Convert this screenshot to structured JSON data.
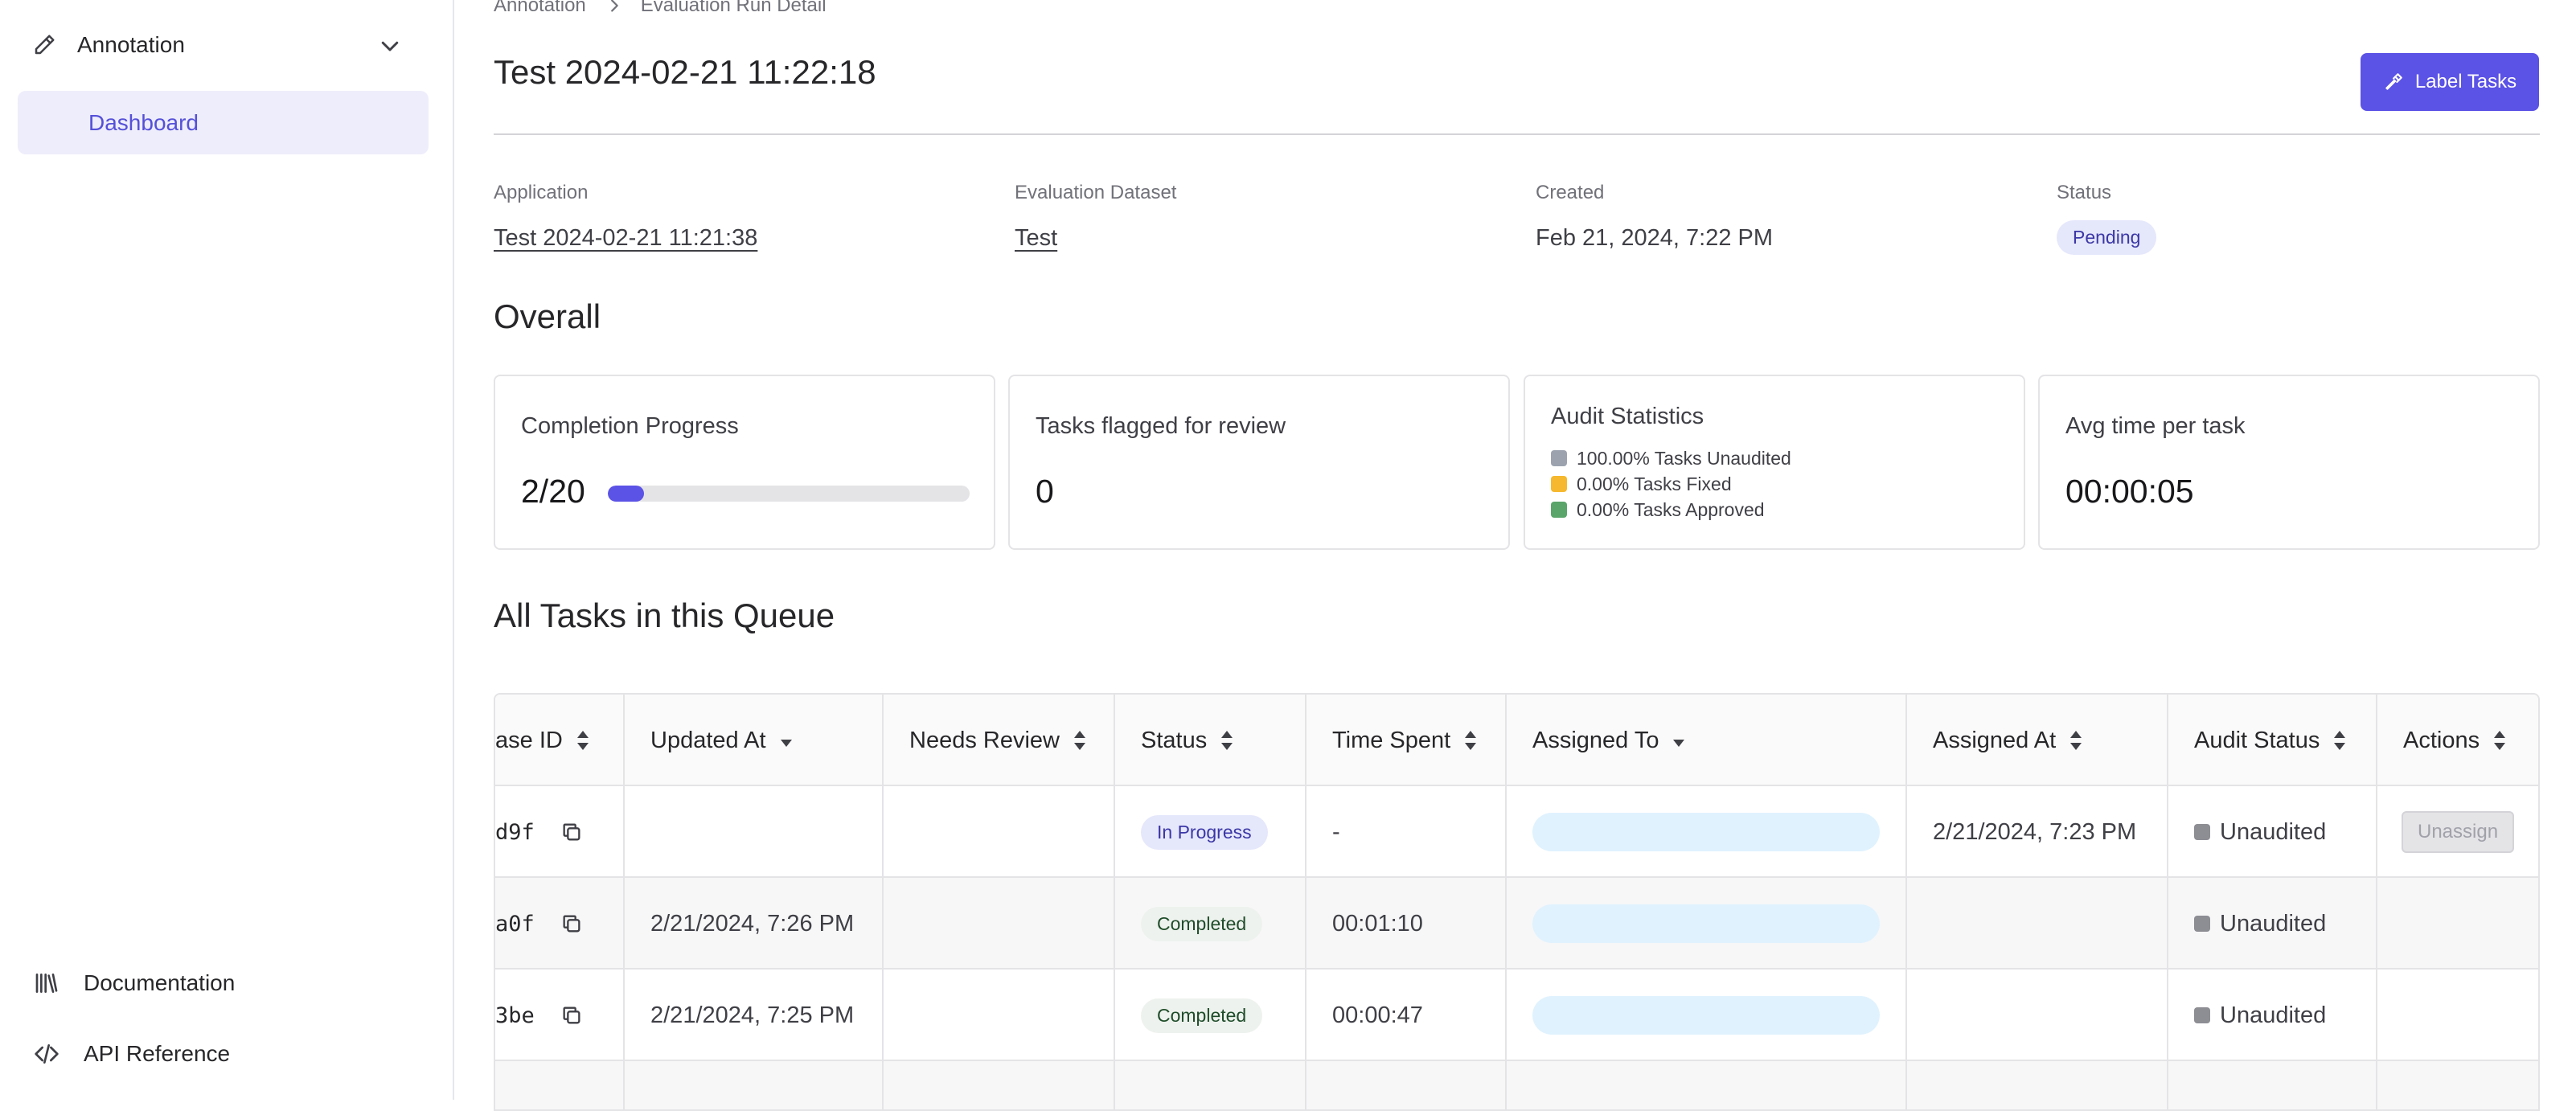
{
  "sidebar": {
    "group_label": "Annotation",
    "active_item": "Dashboard",
    "bottom_items": [
      {
        "label": "Documentation",
        "icon": "book-icon"
      },
      {
        "label": "API Reference",
        "icon": "code-icon"
      }
    ]
  },
  "breadcrumb": {
    "parent": "Annotation",
    "current": "Evaluation Run Detail"
  },
  "page": {
    "title": "Test 2024-02-21 11:22:18",
    "label_button": "Label Tasks"
  },
  "meta": {
    "application": {
      "label": "Application",
      "value": "Test 2024-02-21 11:21:38"
    },
    "dataset": {
      "label": "Evaluation Dataset",
      "value": "Test"
    },
    "created": {
      "label": "Created",
      "value": "Feb 21, 2024, 7:22 PM"
    },
    "status": {
      "label": "Status",
      "value": "Pending"
    }
  },
  "overall": {
    "title": "Overall",
    "completion": {
      "label": "Completion Progress",
      "value": "2/20",
      "fraction": 0.1
    },
    "flagged": {
      "label": "Tasks flagged for review",
      "value": "0"
    },
    "audit": {
      "label": "Audit Statistics",
      "items": [
        {
          "text": "100.00% Tasks Unaudited",
          "color": "#9ca3af"
        },
        {
          "text": "0.00% Tasks Fixed",
          "color": "#f5b82e"
        },
        {
          "text": "0.00% Tasks Approved",
          "color": "#5aa56a"
        }
      ]
    },
    "avg_time": {
      "label": "Avg time per task",
      "value": "00:00:05"
    }
  },
  "tasks": {
    "title": "All Tasks in this Queue",
    "columns": [
      "ase ID",
      "Updated At",
      "Needs Review",
      "Status",
      "Time Spent",
      "Assigned To",
      "Assigned At",
      "Audit Status",
      "Actions"
    ],
    "rows": [
      {
        "id": "d9f",
        "updated": "",
        "status": "In Progress",
        "time": "-",
        "assigned_at": "2/21/2024, 7:23 PM",
        "audit": "Unaudited",
        "action": "Unassign"
      },
      {
        "id": "a0f",
        "updated": "2/21/2024, 7:26 PM",
        "status": "Completed",
        "time": "00:01:10",
        "assigned_at": "",
        "audit": "Unaudited",
        "action": ""
      },
      {
        "id": "3be",
        "updated": "2/21/2024, 7:25 PM",
        "status": "Completed",
        "time": "00:00:47",
        "assigned_at": "",
        "audit": "Unaudited",
        "action": ""
      }
    ]
  }
}
